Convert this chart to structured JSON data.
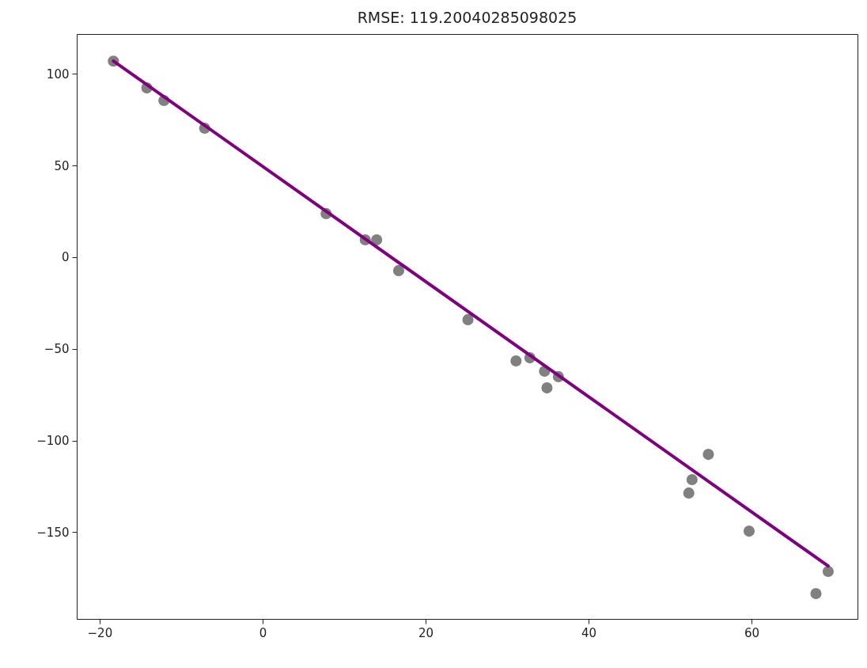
{
  "chart_data": {
    "type": "scatter",
    "title": "RMSE: 119.20040285098025",
    "grid": false,
    "xlim": [
      -22.8,
      73.0
    ],
    "xticks": [
      -20,
      0,
      20,
      40,
      60
    ],
    "ylim": [
      -197.4,
      121.8
    ],
    "yticks": [
      -150,
      -100,
      -50,
      0,
      50,
      100
    ],
    "series": [
      {
        "marker": "circle",
        "color": "#808080",
        "x": [
          -18.3,
          -14.2,
          -12.1,
          -7.1,
          7.8,
          12.6,
          14.0,
          16.7,
          25.2,
          31.1,
          32.8,
          34.6,
          34.9,
          36.3,
          52.3,
          52.7,
          54.7,
          59.7,
          67.9,
          69.4
        ],
        "values": [
          107,
          92.4,
          85.5,
          70.4,
          23.8,
          9.5,
          9.5,
          -7.3,
          -34.1,
          -56.6,
          -54.9,
          -62.2,
          -71.3,
          -65.2,
          -128.7,
          -121.4,
          -107.6,
          -149.5,
          -183.6,
          -171.5
        ]
      },
      {
        "type": "line",
        "color": "#800080",
        "x": [
          -18.3,
          69.4
        ],
        "values": [
          107.1,
          -168.5
        ]
      }
    ]
  }
}
